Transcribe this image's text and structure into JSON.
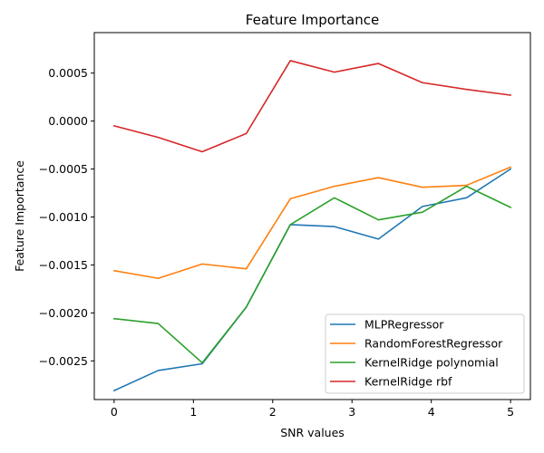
{
  "chart_data": {
    "type": "line",
    "title": "Feature Importance",
    "xlabel": "SNR values",
    "ylabel": "Feature Importance",
    "xlim": [
      -0.25,
      5.25
    ],
    "ylim": [
      -0.002903,
      0.000922
    ],
    "xticks": [
      0,
      1,
      2,
      3,
      4,
      5
    ],
    "xtick_labels": [
      "0",
      "1",
      "2",
      "3",
      "4",
      "5"
    ],
    "yticks": [
      -0.0025,
      -0.002,
      -0.0015,
      -0.001,
      -0.0005,
      0.0,
      0.0005
    ],
    "ytick_labels": [
      "−0.0025",
      "−0.0020",
      "−0.0015",
      "−0.0010",
      "−0.0005",
      "0.0000",
      "0.0005"
    ],
    "grid": false,
    "legend_position": "lower-right",
    "x": [
      0,
      0.5556,
      1.1111,
      1.6667,
      2.2222,
      2.7778,
      3.3333,
      3.8889,
      4.4444,
      5.0
    ],
    "series": [
      {
        "name": "MLPRegressor",
        "color": "#1f77b4",
        "values": [
          -0.00281,
          -0.0026,
          -0.00253,
          -0.00194,
          -0.00108,
          -0.0011,
          -0.00123,
          -0.00089,
          -0.0008,
          -0.0005
        ]
      },
      {
        "name": "RandomForestRegressor",
        "color": "#ff7f0e",
        "values": [
          -0.00156,
          -0.00164,
          -0.00149,
          -0.00154,
          -0.00081,
          -0.00068,
          -0.00059,
          -0.00069,
          -0.00067,
          -0.00048
        ]
      },
      {
        "name": "KernelRidge polynomial",
        "color": "#2ca02c",
        "values": [
          -0.00206,
          -0.00211,
          -0.00252,
          -0.00194,
          -0.00108,
          -0.0008,
          -0.00103,
          -0.00095,
          -0.00068,
          -0.0009
        ]
      },
      {
        "name": "KernelRidge rbf",
        "color": "#d62728",
        "values": [
          -5e-05,
          -0.00017,
          -0.00032,
          -0.00013,
          0.00063,
          0.00051,
          0.0006,
          0.0004,
          0.00033,
          0.00027
        ]
      }
    ]
  }
}
